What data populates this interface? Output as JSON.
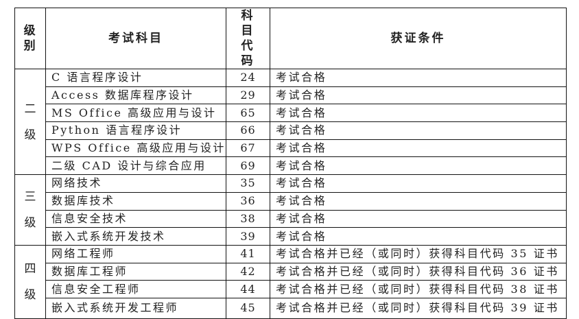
{
  "headers": {
    "level": "级别",
    "subject": "考试科目",
    "code": "科目代码",
    "condition": "获证条件"
  },
  "groups": [
    {
      "level": "二级",
      "rows": [
        {
          "subject": "C 语言程序设计",
          "code": "24",
          "condition": "考试合格"
        },
        {
          "subject": "Access 数据库程序设计",
          "code": "29",
          "condition": "考试合格"
        },
        {
          "subject": "MS Office 高级应用与设计",
          "code": "65",
          "condition": "考试合格"
        },
        {
          "subject": "Python 语言程序设计",
          "code": "66",
          "condition": "考试合格"
        },
        {
          "subject": "WPS Office 高级应用与设计",
          "code": "67",
          "condition": "考试合格"
        },
        {
          "subject": "二级 CAD 设计与综合应用",
          "code": "69",
          "condition": "考试合格"
        }
      ]
    },
    {
      "level": "三级",
      "rows": [
        {
          "subject": "网络技术",
          "code": "35",
          "condition": "考试合格"
        },
        {
          "subject": "数据库技术",
          "code": "36",
          "condition": "考试合格"
        },
        {
          "subject": "信息安全技术",
          "code": "38",
          "condition": "考试合格"
        },
        {
          "subject": "嵌入式系统开发技术",
          "code": "39",
          "condition": "考试合格"
        }
      ]
    },
    {
      "level": "四级",
      "rows": [
        {
          "subject": "网络工程师",
          "code": "41",
          "condition": "考试合格并已经（或同时）获得科目代码 35 证书"
        },
        {
          "subject": "数据库工程师",
          "code": "42",
          "condition": "考试合格并已经（或同时）获得科目代码 36 证书"
        },
        {
          "subject": "信息安全工程师",
          "code": "44",
          "condition": "考试合格并已经（或同时）获得科目代码 38 证书"
        },
        {
          "subject": "嵌入式系统开发工程师",
          "code": "45",
          "condition": "考试合格并已经（或同时）获得科目代码 39 证书"
        }
      ]
    }
  ]
}
